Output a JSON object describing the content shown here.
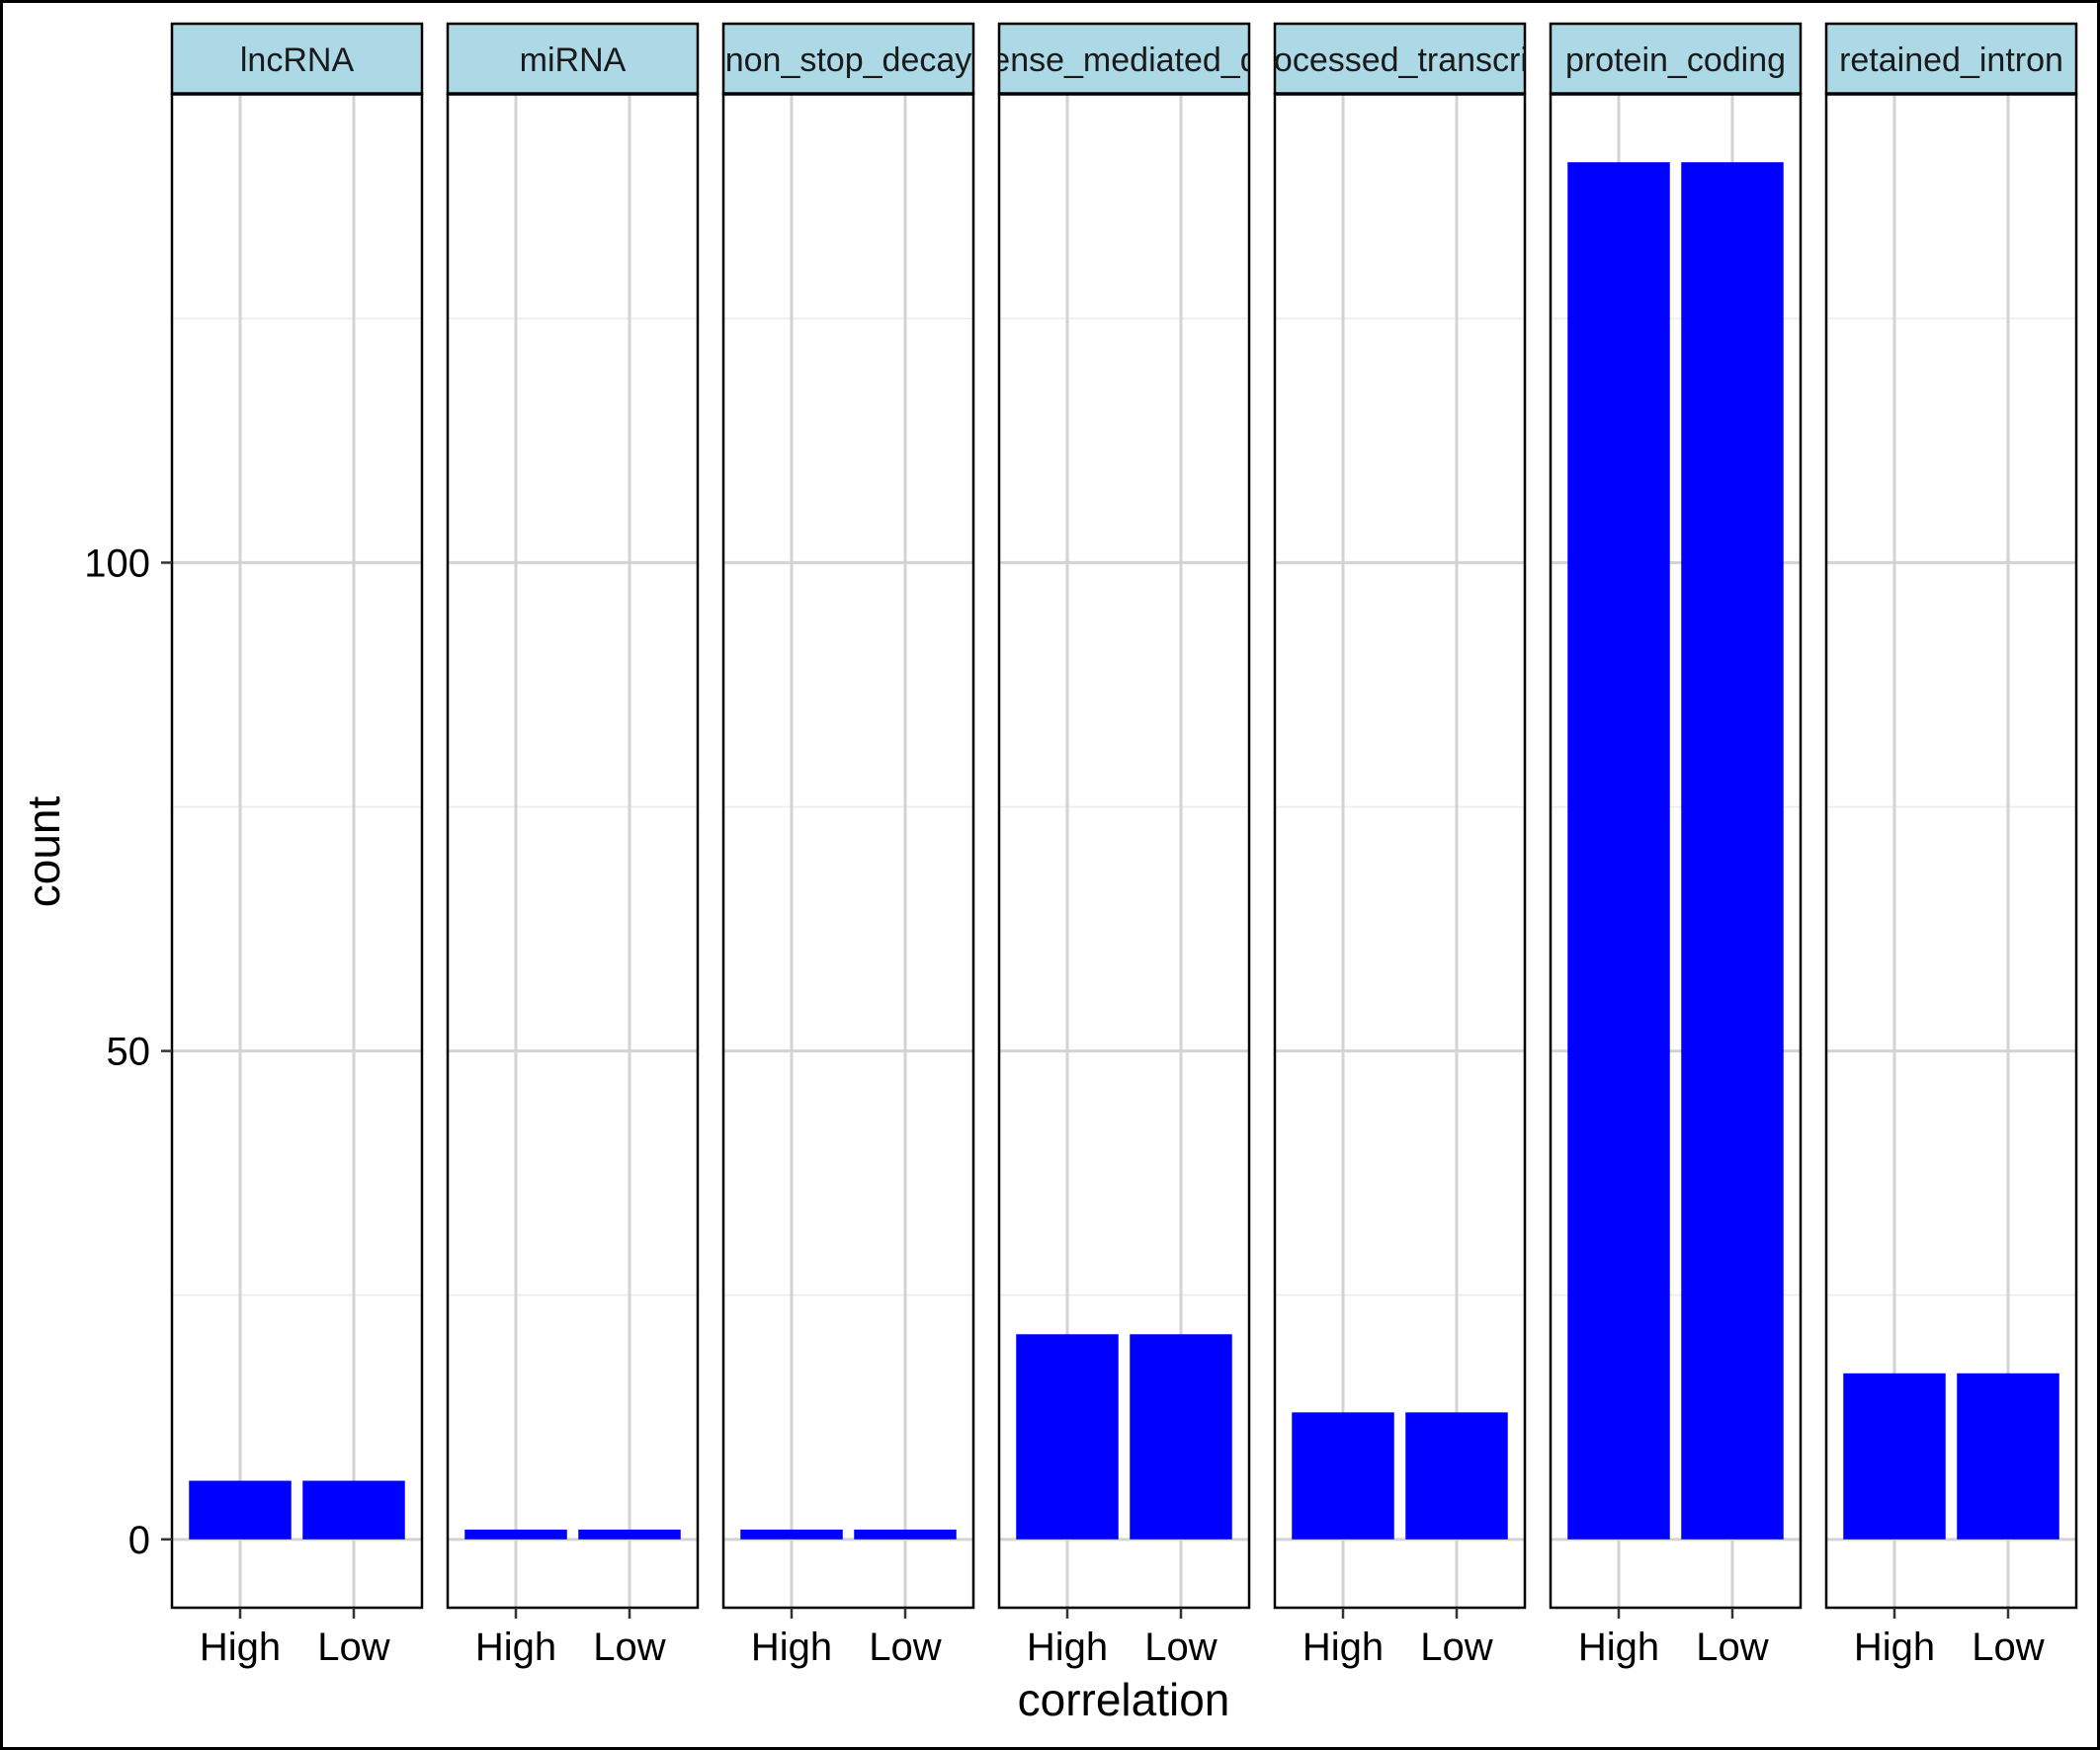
{
  "chart_data": {
    "type": "bar",
    "facet_by": "transcript biotype",
    "xlabel": "correlation",
    "ylabel": "count",
    "ylim": [
      -7,
      148
    ],
    "yticks": [
      0,
      50,
      100
    ],
    "ytick_labels": [
      "0",
      "50",
      "100"
    ],
    "grid": true,
    "legend": "none",
    "categories": [
      "High",
      "Low"
    ],
    "panels": [
      {
        "label": "lncRNA",
        "values": [
          6,
          6
        ]
      },
      {
        "label": "miRNA",
        "values": [
          1,
          1
        ]
      },
      {
        "label": "non_stop_decay",
        "values": [
          1,
          1
        ]
      },
      {
        "label": "nonsense_mediated_decay",
        "values": [
          21,
          21
        ]
      },
      {
        "label": "processed_transcript",
        "values": [
          13,
          13
        ]
      },
      {
        "label": "protein_coding",
        "values": [
          141,
          141
        ]
      },
      {
        "label": "retained_intron",
        "values": [
          17,
          17
        ]
      }
    ],
    "colors": {
      "bar": "#0000ff",
      "strip": "#add8e6",
      "grid_major": "#d3d3d3",
      "grid_minor": "#ececec",
      "panel_border": "#000000"
    }
  }
}
